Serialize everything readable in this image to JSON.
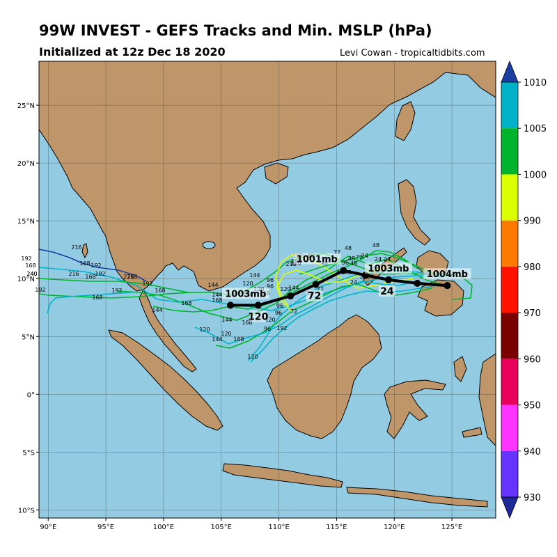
{
  "header": {
    "title": "99W INVEST - GEFS Tracks and Min. MSLP (hPa)",
    "subtitle": "Initialized at 12z Dec 18 2020",
    "credit": "Levi Cowan - tropicaltidbits.com"
  },
  "map": {
    "lon_range": [
      89.2,
      128.8
    ],
    "lat_range": [
      -10.7,
      28.8
    ],
    "lon_ticks": [
      "90°E",
      "95°E",
      "100°E",
      "105°E",
      "110°E",
      "115°E",
      "120°E",
      "125°E"
    ],
    "lat_ticks": [
      "25°N",
      "20°N",
      "15°N",
      "10°N",
      "5°N",
      "0°",
      "5°S",
      "10°S"
    ],
    "colors": {
      "ocean": "#93cce2",
      "land": "#bf9669",
      "mean_track": "#000000"
    }
  },
  "mean_track": {
    "points": [
      {
        "lon": 124.6,
        "lat": 9.4
      },
      {
        "lon": 122.0,
        "lat": 9.6
      },
      {
        "lon": 119.5,
        "lat": 9.9
      },
      {
        "lon": 117.5,
        "lat": 10.3
      },
      {
        "lon": 115.6,
        "lat": 10.7
      },
      {
        "lon": 113.2,
        "lat": 9.5
      },
      {
        "lon": 111.0,
        "lat": 8.5
      },
      {
        "lon": 108.2,
        "lat": 7.7
      },
      {
        "lon": 105.8,
        "lat": 7.7
      }
    ],
    "pressure_labels": [
      "1004mb",
      "1003mb",
      "1001mb",
      "1003mb"
    ],
    "hour_labels": [
      "24",
      "72",
      "120"
    ]
  },
  "member_hour_labels": [
    "192",
    "216",
    "168",
    "192",
    "240",
    "216",
    "192",
    "168",
    "216",
    "168",
    "192",
    "168",
    "240",
    "192",
    "216",
    "168",
    "192",
    "144",
    "168",
    "144",
    "144",
    "168",
    "144",
    "120",
    "96",
    "120",
    "144",
    "168",
    "120",
    "96",
    "144",
    "120",
    "96",
    "120",
    "168",
    "120",
    "96",
    "192",
    "72",
    "120",
    "144",
    "96",
    "168",
    "120",
    "192",
    "216",
    "192",
    "48",
    "72",
    "48",
    "96",
    "48",
    "72",
    "48",
    "24",
    "48",
    "24",
    "24",
    "48",
    "24",
    "48",
    "24",
    "72",
    "48",
    "24",
    "72",
    "120"
  ],
  "colorbar": {
    "ticks": [
      "1010",
      "1005",
      "1000",
      "990",
      "980",
      "970",
      "960",
      "950",
      "940",
      "930"
    ],
    "colors": [
      "#1a3fa0",
      "#00b3c8",
      "#00b32d",
      "#d9ff00",
      "#ff7a00",
      "#ff1200",
      "#7a0000",
      "#e8005a",
      "#ff33ff",
      "#6633ff",
      "#1f2a99"
    ]
  }
}
